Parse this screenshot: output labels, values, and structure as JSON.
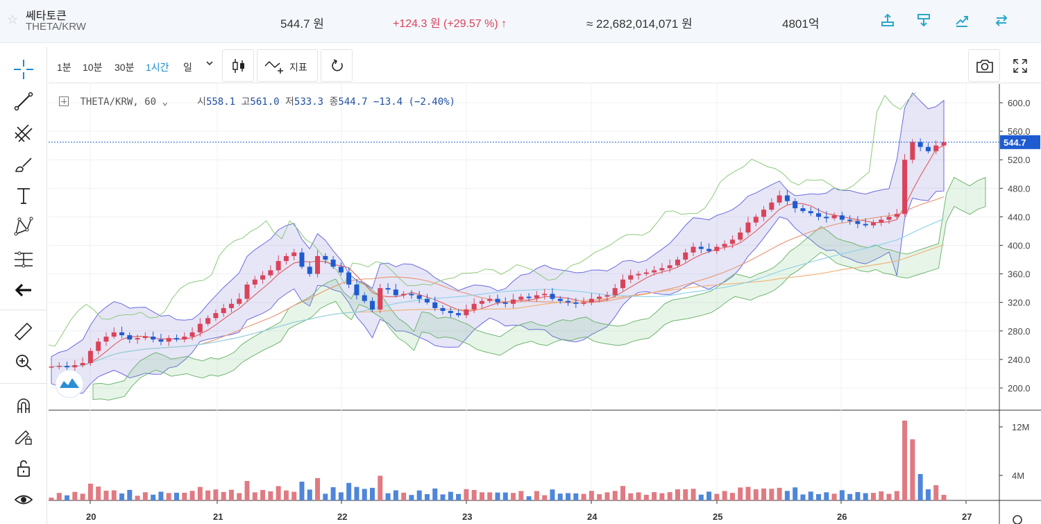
{
  "header": {
    "coin_name": "쎄타토큰",
    "pair": "THETA/KRW",
    "price": "544.7 원",
    "change": "+124.3 원 (+29.57 %) ↑",
    "volume": "≈ 22,682,014,071 원",
    "market_cap": "4801억",
    "colors": {
      "up": "#d9435a",
      "down": "#1e5bd1",
      "accent": "#1a8ad6"
    }
  },
  "toolbar": {
    "timeframes": [
      "1분",
      "10분",
      "30분",
      "1시간",
      "일"
    ],
    "active_timeframe": "1시간",
    "indicators_label": "지표"
  },
  "legend": {
    "symbol": "THETA/KRW, 60",
    "open_label": "시",
    "open": "558.1",
    "high_label": "고",
    "high": "561.0",
    "low_label": "저",
    "low": "533.3",
    "close_label": "종",
    "close": "544.7",
    "change": "−13.4 (−2.40%)"
  },
  "chart_data": {
    "type": "line",
    "title": "",
    "price_axis": {
      "ticks": [
        600,
        560,
        520,
        480,
        440,
        400,
        360,
        320,
        280,
        240,
        200
      ],
      "ylim": [
        180,
        620
      ]
    },
    "volume_axis": {
      "ticks": [
        "12M",
        "4M"
      ]
    },
    "x_ticks": [
      "20",
      "21",
      "22",
      "23",
      "24",
      "25",
      "26",
      "27"
    ],
    "last_price": 544.7,
    "series": [
      {
        "values_close": [
          230,
          231,
          229,
          232,
          235,
          252,
          265,
          272,
          278,
          274,
          268,
          270,
          272,
          268,
          265,
          270,
          268,
          272,
          278,
          290,
          298,
          305,
          312,
          318,
          325,
          345,
          352,
          358,
          365,
          378,
          385,
          390,
          370,
          360,
          385,
          380,
          370,
          362,
          345,
          330,
          322,
          310,
          340,
          338,
          330,
          332,
          330,
          325,
          320,
          312,
          308,
          305,
          302,
          310,
          318,
          322,
          325,
          320,
          318,
          324,
          328,
          326,
          330,
          332,
          325,
          322,
          320,
          318,
          320,
          325,
          328,
          330,
          340,
          352,
          358,
          360,
          362,
          365,
          368,
          372,
          380,
          390,
          398,
          395,
          392,
          398,
          402,
          408,
          418,
          432,
          440,
          450,
          460,
          470,
          462,
          452,
          448,
          445,
          440,
          438,
          442,
          436,
          434,
          430,
          428,
          432,
          436,
          440,
          444,
          520,
          545,
          538,
          532,
          540,
          544.7
        ]
      }
    ]
  },
  "sidebar": {
    "tools": [
      "crosshair-icon",
      "trendline-icon",
      "fib-icon",
      "brush-icon",
      "text-icon",
      "pattern-icon",
      "measure-icon",
      "back-arrow-icon",
      "ruler-icon",
      "zoom-in-icon",
      "magnet-icon",
      "lock-draw-icon",
      "unlock-icon",
      "eye-icon"
    ]
  }
}
